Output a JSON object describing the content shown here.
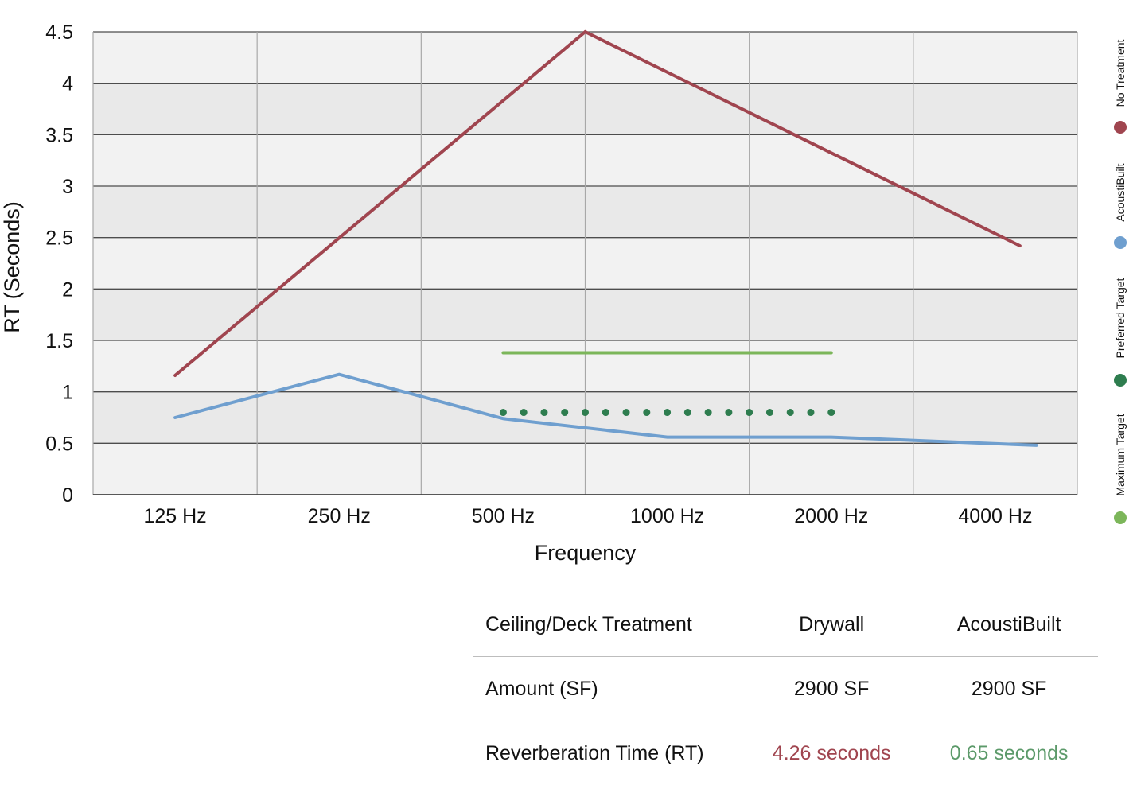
{
  "chart_data": {
    "type": "line",
    "xlabel": "Frequency",
    "ylabel": "RT (Seconds)",
    "categories": [
      "125 Hz",
      "250 Hz",
      "500 Hz",
      "1000 Hz",
      "2000 Hz",
      "4000 Hz"
    ],
    "ylim": [
      0,
      4.5
    ],
    "yticks": [
      {
        "value": 0,
        "label": "0"
      },
      {
        "value": 0.5,
        "label": "0.5"
      },
      {
        "value": 1,
        "label": "1"
      },
      {
        "value": 1.5,
        "label": "1.5"
      },
      {
        "value": 2,
        "label": "2"
      },
      {
        "value": 2.5,
        "label": "2.5"
      },
      {
        "value": 3,
        "label": "3"
      },
      {
        "value": 3.5,
        "label": "3.5"
      },
      {
        "value": 4,
        "label": "4"
      },
      {
        "value": 4.5,
        "label": "4.5"
      }
    ],
    "grid": true,
    "legend_position": "right",
    "series": [
      {
        "name": "No Treatment",
        "color": "#a0454f",
        "style": "solid",
        "points": [
          [
            0,
            1.16
          ],
          [
            2.5,
            4.5
          ],
          [
            5.15,
            2.42
          ]
        ]
      },
      {
        "name": "AcoustiBuilt",
        "color": "#6f9fcf",
        "style": "solid",
        "points": [
          [
            0,
            0.75
          ],
          [
            1,
            1.17
          ],
          [
            2,
            0.74
          ],
          [
            3,
            0.56
          ],
          [
            4,
            0.56
          ],
          [
            5.25,
            0.48
          ]
        ]
      },
      {
        "name": "Preferred Target",
        "color": "#2e7d4f",
        "style": "dotted",
        "points": [
          [
            2,
            0.8
          ],
          [
            4,
            0.8
          ]
        ]
      },
      {
        "name": "Maximum Target",
        "color": "#7cb65a",
        "style": "solid",
        "points": [
          [
            2,
            1.38
          ],
          [
            4,
            1.38
          ]
        ]
      }
    ]
  },
  "table": {
    "header": {
      "label": "Ceiling/Deck Treatment",
      "col1": "Drywall",
      "col2": "AcoustiBuilt"
    },
    "rows": [
      {
        "label": "Amount (SF)",
        "col1": "2900 SF",
        "col2": "2900 SF",
        "col1_color": "#111111",
        "col2_color": "#111111"
      },
      {
        "label": "Reverberation Time (RT)",
        "col1": "4.26 seconds",
        "col2": "0.65 seconds",
        "col1_color": "#a0454f",
        "col2_color": "#5c9a6a"
      }
    ]
  }
}
